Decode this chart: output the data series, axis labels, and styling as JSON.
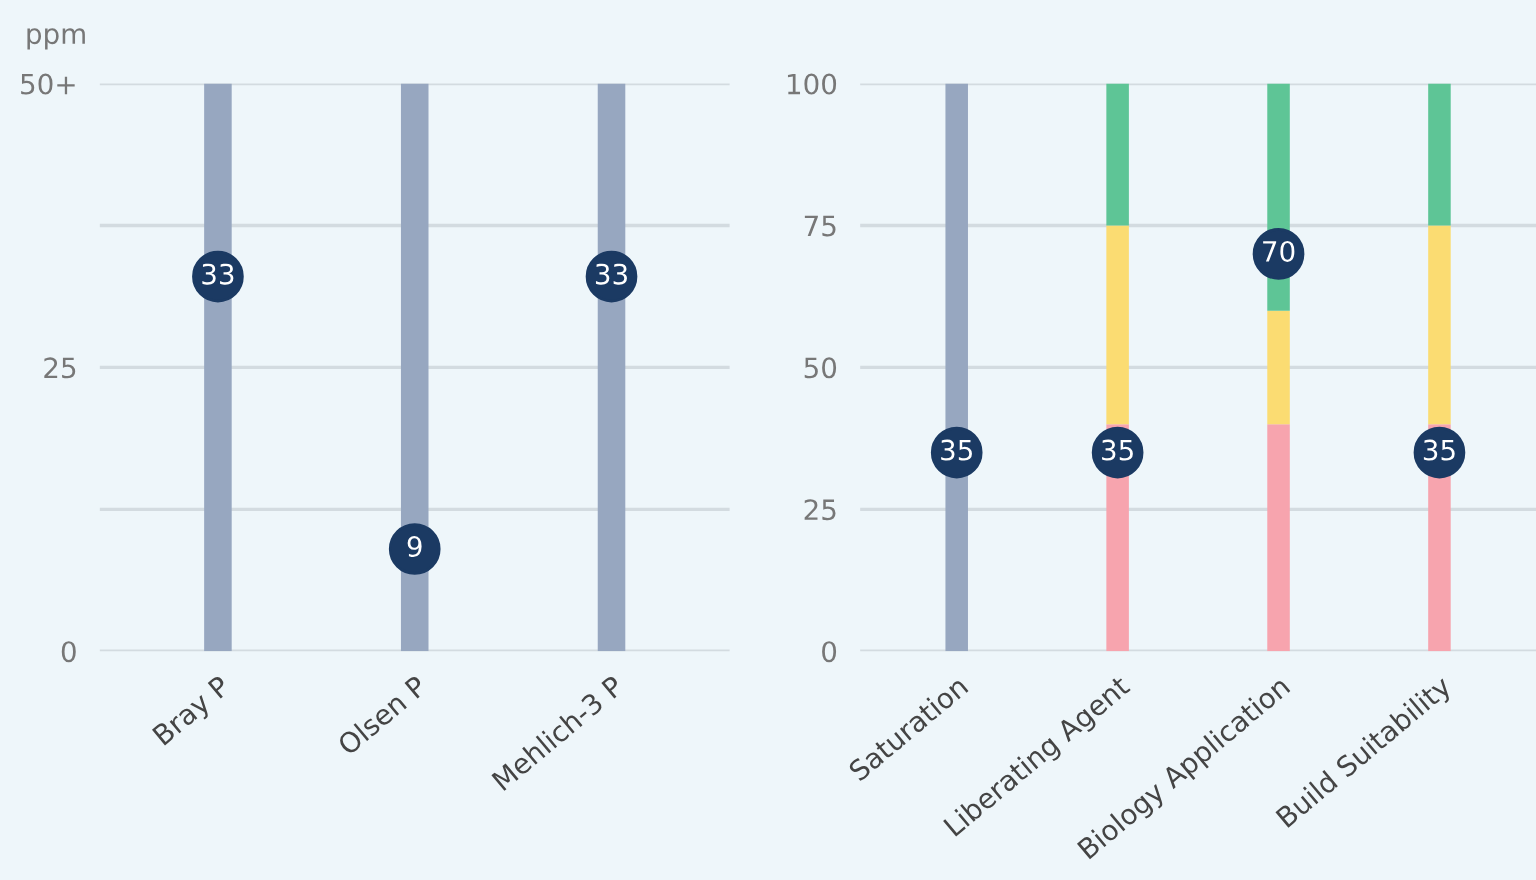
{
  "chart_data": [
    {
      "type": "bar",
      "ylabel": "ppm",
      "categories": [
        "Bray P",
        "Olsen P",
        "Mehlich-3 P"
      ],
      "ylim": [
        0,
        50
      ],
      "yticks": [
        0,
        {
          "value": 12.5,
          "label": null
        },
        25,
        {
          "value": 37.5,
          "label": null
        },
        {
          "value": 50,
          "label": "50+"
        }
      ],
      "grid": "y",
      "stacked": true,
      "series": [
        {
          "color": "#97a7c0",
          "values": [
            50,
            50,
            50
          ]
        },
        {
          "type": "scatter",
          "color": "#1b3a63",
          "values": [
            33,
            9,
            33
          ],
          "value_labels": [
            "33",
            "9",
            "33"
          ]
        }
      ]
    },
    {
      "type": "bar",
      "categories": [
        "Saturation",
        "Liberating Agent",
        "Biology Application",
        "Build Suitability"
      ],
      "ylim": [
        0,
        100
      ],
      "yticks": [
        0,
        25,
        50,
        75,
        100
      ],
      "grid": "y",
      "stacked": true,
      "series": [
        {
          "color": "#97a7c0",
          "values": [
            100,
            null,
            null,
            null
          ]
        },
        {
          "color": "#f7a4ae",
          "values": [
            null,
            40,
            40,
            40
          ]
        },
        {
          "color": "#fbdc72",
          "values": [
            null,
            35,
            20,
            35
          ]
        },
        {
          "color": "#5ec596",
          "values": [
            null,
            25,
            40,
            25
          ]
        },
        {
          "type": "scatter",
          "color": "#1b3a63",
          "values": [
            35,
            35,
            70,
            35
          ],
          "value_labels": [
            "35",
            "35",
            "70",
            "35"
          ]
        }
      ]
    }
  ]
}
